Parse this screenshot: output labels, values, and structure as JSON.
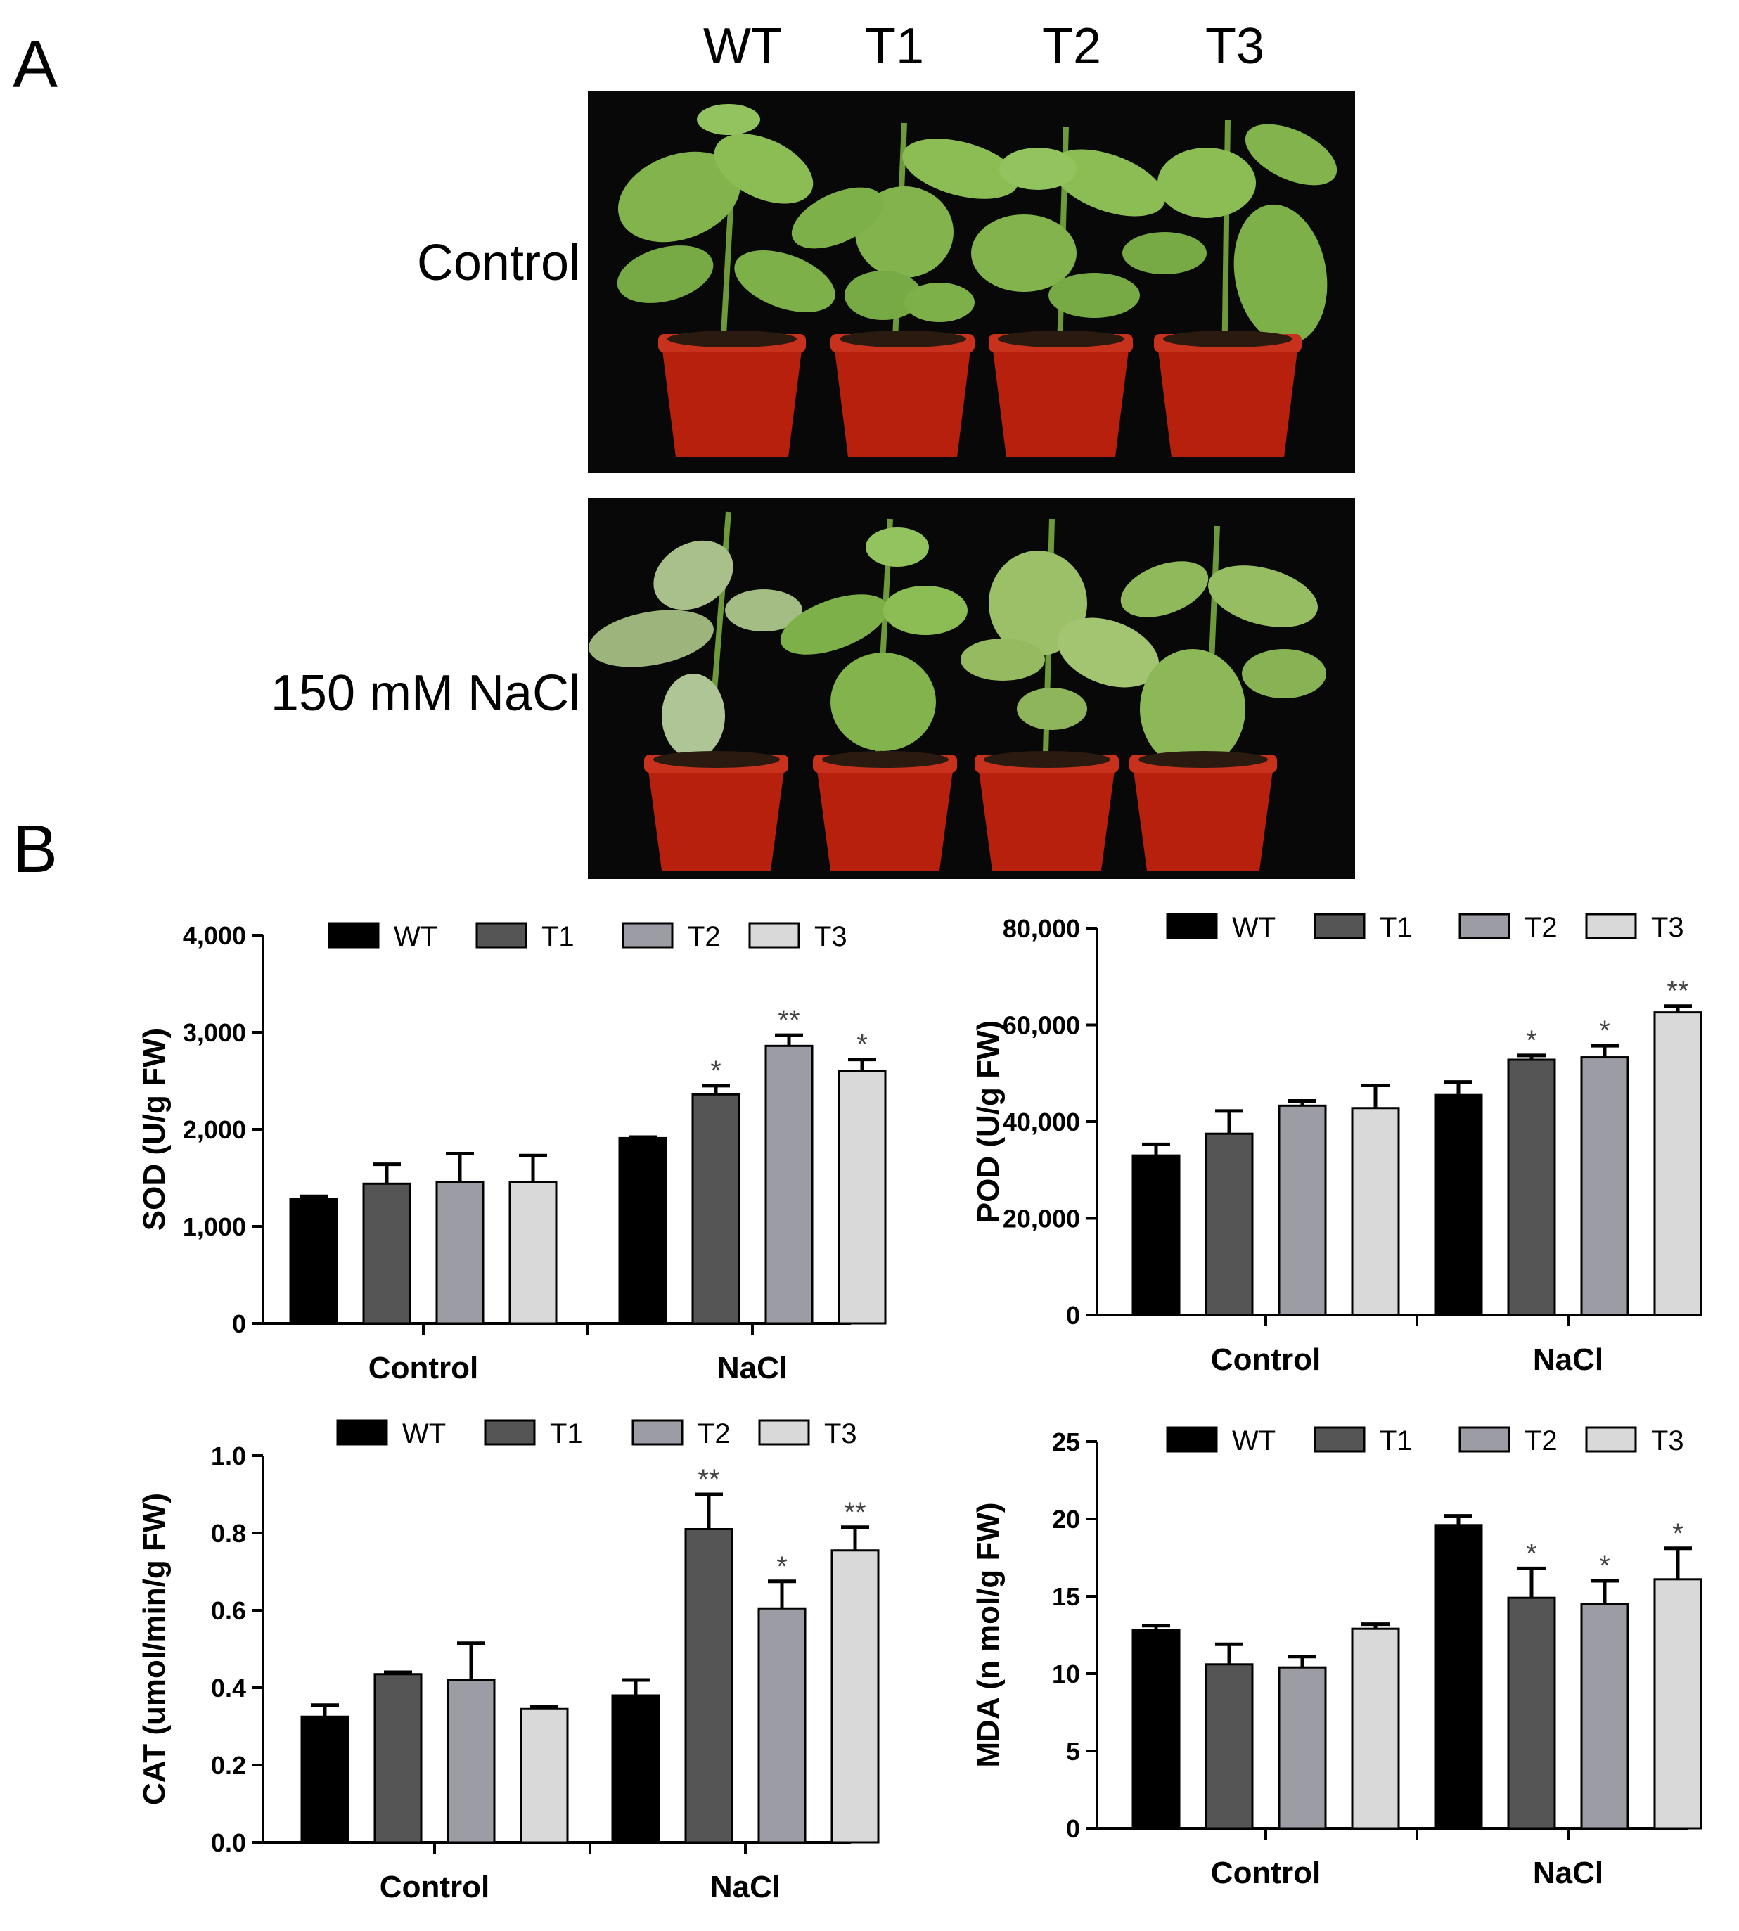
{
  "panelA": {
    "letter": "A",
    "columns": [
      "WT",
      "T1",
      "T2",
      "T3"
    ],
    "rows": [
      "Control",
      "150 mM NaCl"
    ]
  },
  "panelB": {
    "letter": "B"
  },
  "colors": {
    "WT": "#000000",
    "T1": "#555555",
    "T2": "#9c9ca4",
    "T3": "#d9d9d9",
    "photo_background": "#080808",
    "pot": "#b8200e",
    "leaf": "#7fb04a",
    "leaf_stressed": "#a9c08a"
  },
  "chart_data": [
    {
      "type": "bar",
      "ylabel": "SOD (U/g FW)",
      "categories": [
        "Control",
        "NaCl"
      ],
      "ylim": [
        0,
        4000
      ],
      "yticks": [
        "0",
        "1,000",
        "2,000",
        "3,000",
        "4,000"
      ],
      "legend_position": "top",
      "series": [
        {
          "name": "WT",
          "values": [
            1280,
            1910
          ],
          "errors": [
            30,
            10
          ],
          "significance": [
            "",
            ""
          ]
        },
        {
          "name": "T1",
          "values": [
            1440,
            2360
          ],
          "errors": [
            200,
            90
          ],
          "significance": [
            "",
            "*"
          ]
        },
        {
          "name": "T2",
          "values": [
            1460,
            2860
          ],
          "errors": [
            290,
            110
          ],
          "significance": [
            "",
            "**"
          ]
        },
        {
          "name": "T3",
          "values": [
            1460,
            2600
          ],
          "errors": [
            270,
            120
          ],
          "significance": [
            "",
            "*"
          ]
        }
      ]
    },
    {
      "type": "bar",
      "ylabel": "POD (U/g FW)",
      "categories": [
        "Control",
        "NaCl"
      ],
      "ylim": [
        0,
        80000
      ],
      "yticks": [
        "0",
        "20,000",
        "40,000",
        "60,000",
        "80,000"
      ],
      "legend_position": "top",
      "series": [
        {
          "name": "WT",
          "values": [
            33000,
            45500
          ],
          "errors": [
            2300,
            2700
          ],
          "significance": [
            "",
            ""
          ]
        },
        {
          "name": "T1",
          "values": [
            37500,
            52800
          ],
          "errors": [
            4700,
            900
          ],
          "significance": [
            "",
            "*"
          ]
        },
        {
          "name": "T2",
          "values": [
            43300,
            53300
          ],
          "errors": [
            1000,
            2400
          ],
          "significance": [
            "",
            "*"
          ]
        },
        {
          "name": "T3",
          "values": [
            42800,
            62600
          ],
          "errors": [
            4700,
            1300
          ],
          "significance": [
            "",
            "**"
          ]
        }
      ]
    },
    {
      "type": "bar",
      "ylabel": "CAT (umol/min/g FW)",
      "categories": [
        "Control",
        "NaCl"
      ],
      "ylim": [
        0,
        1.0
      ],
      "yticks": [
        "0.0",
        "0.2",
        "0.4",
        "0.6",
        "0.8",
        "1.0"
      ],
      "legend_position": "top",
      "series": [
        {
          "name": "WT",
          "values": [
            0.325,
            0.38
          ],
          "errors": [
            0.03,
            0.04
          ],
          "significance": [
            "",
            ""
          ]
        },
        {
          "name": "T1",
          "values": [
            0.435,
            0.81
          ],
          "errors": [
            0.005,
            0.09
          ],
          "significance": [
            "",
            "**"
          ]
        },
        {
          "name": "T2",
          "values": [
            0.42,
            0.605
          ],
          "errors": [
            0.095,
            0.07
          ],
          "significance": [
            "",
            "*"
          ]
        },
        {
          "name": "T3",
          "values": [
            0.345,
            0.755
          ],
          "errors": [
            0.005,
            0.06
          ],
          "significance": [
            "",
            "**"
          ]
        }
      ]
    },
    {
      "type": "bar",
      "ylabel": "MDA (n mol/g FW)",
      "categories": [
        "Control",
        "NaCl"
      ],
      "ylim": [
        0,
        25
      ],
      "yticks": [
        "0",
        "5",
        "10",
        "15",
        "20",
        "25"
      ],
      "legend_position": "top",
      "series": [
        {
          "name": "WT",
          "values": [
            12.8,
            19.6
          ],
          "errors": [
            0.3,
            0.6
          ],
          "significance": [
            "",
            ""
          ]
        },
        {
          "name": "T1",
          "values": [
            10.6,
            14.9
          ],
          "errors": [
            1.3,
            1.9
          ],
          "significance": [
            "",
            "*"
          ]
        },
        {
          "name": "T2",
          "values": [
            10.4,
            14.5
          ],
          "errors": [
            0.7,
            1.5
          ],
          "significance": [
            "",
            "*"
          ]
        },
        {
          "name": "T3",
          "values": [
            12.9,
            16.1
          ],
          "errors": [
            0.3,
            2.0
          ],
          "significance": [
            "",
            "*"
          ]
        }
      ]
    }
  ]
}
